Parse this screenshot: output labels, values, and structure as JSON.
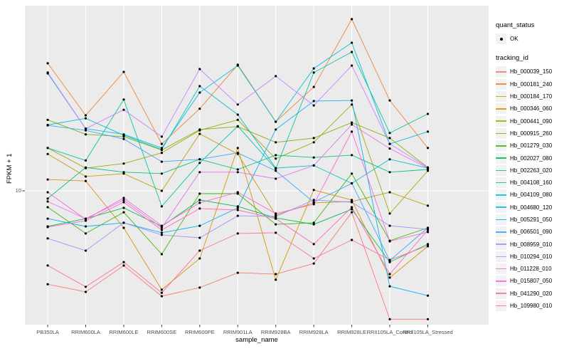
{
  "window": {
    "background": "#FFFFFF"
  },
  "chart_data": {
    "type": "line",
    "title": "",
    "xlabel": "sample_name",
    "ylabel": "FPKM + 1",
    "y_scale": "log10",
    "y_ticks": [
      10
    ],
    "y_minor_ticks": [
      3.162,
      31.623
    ],
    "ylim": [
      2.1,
      90
    ],
    "grid": "on",
    "legend_position": "right",
    "panel_background": "#EBEBEB",
    "gridline_color": "#FFFFFF",
    "point_color": "#000000",
    "tick_label_color": "#4d4d4d",
    "categories": [
      "PB350LA",
      "RRIM600LA",
      "RRIM600LE",
      "RRIM600SE",
      "RRIM600PE",
      "RRIM901LA",
      "RRIM928BA",
      "RRIM928LA",
      "RRIM928LE",
      "RRII105LA_Control",
      "RRII105LA_Stressed"
    ],
    "series": [
      {
        "name": "Hb_000039_150",
        "color": "#F8766D",
        "values": [
          3.4,
          3.11,
          4.22,
          2.96,
          3.27,
          3.88,
          3.82,
          4.32,
          7.81,
          2.27,
          2.27
        ]
      },
      {
        "name": "Hb_000181_240",
        "color": "#EA8331",
        "values": [
          43.6,
          23.9,
          39.5,
          17.2,
          25.8,
          42.9,
          22.2,
          33.2,
          72.6,
          28.4,
          16.4
        ]
      },
      {
        "name": "Hb_000184_170",
        "color": "#D89000",
        "values": [
          11.4,
          11.2,
          6.52,
          3.19,
          4.58,
          16.4,
          3.58,
          10.1,
          8.99,
          3.67,
          5.27
        ]
      },
      {
        "name": "Hb_000346_060",
        "color": "#C09B00",
        "values": [
          15.3,
          11.8,
          12.2,
          10.0,
          19.3,
          15.3,
          7.56,
          8.7,
          8.84,
          9.84,
          8.42
        ]
      },
      {
        "name": "Hb_000441_090",
        "color": "#A3A500",
        "values": [
          16.4,
          13.0,
          13.7,
          15.5,
          20.1,
          22.7,
          14.5,
          17.5,
          27.1,
          7.69,
          12.6
        ]
      },
      {
        "name": "Hb_000915_260",
        "color": "#7CAE00",
        "values": [
          22.7,
          19.2,
          18.7,
          16.0,
          20.3,
          21.0,
          17.5,
          18.4,
          22.0,
          18.4,
          13.1
        ]
      },
      {
        "name": "Hb_001279_030",
        "color": "#39B600",
        "values": [
          8.28,
          6.11,
          7.81,
          4.81,
          9.68,
          9.68,
          6.79,
          6.91,
          12.2,
          5.62,
          6.52
        ]
      },
      {
        "name": "Hb_002027_080",
        "color": "#00BB4E",
        "values": [
          6.63,
          7.25,
          8.21,
          6.63,
          8.99,
          8.35,
          7.31,
          6.79,
          8.08,
          4.39,
          5.4
        ]
      },
      {
        "name": "Hb_002263_020",
        "color": "#00BF7D",
        "values": [
          9.14,
          13.1,
          12.4,
          12.2,
          14.4,
          12.8,
          15.1,
          14.7,
          15.1,
          12.4,
          12.8
        ]
      },
      {
        "name": "Hb_004108_160",
        "color": "#00C1A3",
        "values": [
          16.4,
          14.2,
          28.7,
          8.35,
          13.8,
          21.1,
          12.9,
          39.2,
          49.7,
          19.5,
          24.3
        ]
      },
      {
        "name": "Hb_004109_080",
        "color": "#00BFC4",
        "values": [
          21.4,
          23.1,
          19.0,
          16.1,
          33.5,
          24.1,
          13.0,
          13.4,
          10.9,
          14.4,
          13.0
        ]
      },
      {
        "name": "Hb_004680_120",
        "color": "#00BAE0",
        "values": [
          38.8,
          20.5,
          19.2,
          16.4,
          31.1,
          42.5,
          22.2,
          41.1,
          55.3,
          17.2,
          19.8
        ]
      },
      {
        "name": "Hb_005291_050",
        "color": "#00B0F6",
        "values": [
          7.25,
          6.63,
          6.91,
          6.16,
          6.68,
          8.21,
          20.3,
          28.2,
          28.4,
          3.32,
          2.98
        ]
      },
      {
        "name": "Hb_006501_090",
        "color": "#35A2FF",
        "values": [
          21.3,
          20.1,
          18.2,
          14.0,
          14.4,
          15.5,
          12.6,
          8.77,
          10.9,
          4.47,
          6.52
        ]
      },
      {
        "name": "Hb_008959_010",
        "color": "#9590FF",
        "values": [
          5.77,
          5.01,
          6.91,
          6.01,
          5.81,
          7.49,
          7.44,
          8.99,
          8.77,
          6.68,
          6.41
        ]
      },
      {
        "name": "Hb_010294_010",
        "color": "#C77CFF",
        "values": [
          39.2,
          20.5,
          25.5,
          18.7,
          40.8,
          27.1,
          37.6,
          26.8,
          42.5,
          17.2,
          13.1
        ]
      },
      {
        "name": "Hb_011228_010",
        "color": "#E76BF3",
        "values": [
          8.84,
          7.25,
          8.99,
          6.52,
          12.4,
          12.4,
          11.5,
          13.4,
          21.5,
          16.3,
          13.0
        ]
      },
      {
        "name": "Hb_015807_050",
        "color": "#FA62DB",
        "values": [
          9.84,
          7.19,
          9.21,
          6.68,
          8.7,
          9.84,
          7.69,
          8.56,
          19.8,
          5.58,
          6.21
        ]
      },
      {
        "name": "Hb_041290_020",
        "color": "#FF62BC",
        "values": [
          6.58,
          7.08,
          8.77,
          6.36,
          8.15,
          8.01,
          7.25,
          5.4,
          8.28,
          3.82,
          6.36
        ]
      },
      {
        "name": "Hb_109980_010",
        "color": "#FF6A98",
        "values": [
          4.22,
          3.3,
          4.39,
          3.08,
          5.01,
          6.11,
          6.16,
          4.58,
          5.67,
          4.5,
          5.31
        ]
      }
    ]
  },
  "legend": {
    "quant_status": {
      "title": "quant_status",
      "items": [
        {
          "label": "OK",
          "symbol": "point",
          "color": "#000000"
        }
      ]
    },
    "tracking_id": {
      "title": "tracking_id"
    }
  }
}
